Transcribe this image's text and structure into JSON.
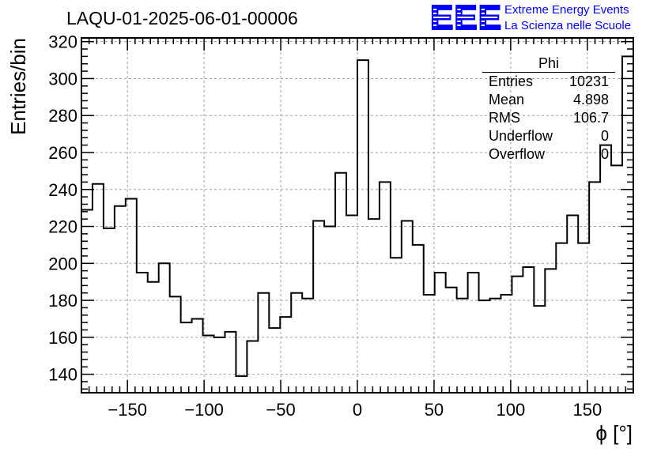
{
  "header": {
    "title": "LAQU-01-2025-06-01-00006",
    "logo_text": "EEE",
    "logo_line1": "Extreme Energy Events",
    "logo_line2": "La Scienza nelle Scuole"
  },
  "stats_box": {
    "title": "Phi",
    "rows": [
      {
        "key": "Entries",
        "value": "10231"
      },
      {
        "key": "Mean",
        "value": "4.898"
      },
      {
        "key": "RMS",
        "value": "106.7"
      },
      {
        "key": "Underflow",
        "value": "0"
      },
      {
        "key": "Overflow",
        "value": "0"
      }
    ]
  },
  "colors": {
    "logo_blue": "#0000ff",
    "line": "#000000",
    "grid": "#a0a0a0"
  },
  "chart_data": {
    "type": "histogram",
    "xlabel": "ϕ [°]",
    "ylabel": "Entries/bin",
    "xlim": [
      -180,
      180
    ],
    "ylim": [
      130,
      322
    ],
    "grid": true,
    "bin_width": 7.2,
    "bin_edges_start": -180,
    "x_ticks": [
      -150,
      -100,
      -50,
      0,
      50,
      100,
      150
    ],
    "x_tick_labels": [
      "−150",
      "−100",
      "−50",
      "0",
      "50",
      "100",
      "150"
    ],
    "y_ticks": [
      140,
      160,
      180,
      200,
      220,
      240,
      260,
      280,
      300,
      320
    ],
    "y_tick_labels": [
      "140",
      "160",
      "180",
      "200",
      "220",
      "240",
      "260",
      "280",
      "300",
      "320"
    ],
    "values": [
      229,
      243,
      219,
      231,
      235,
      195,
      190,
      200,
      182,
      168,
      170,
      161,
      160,
      163,
      139,
      158,
      184,
      165,
      171,
      184,
      181,
      223,
      220,
      249,
      226,
      310,
      224,
      244,
      203,
      223,
      210,
      183,
      195,
      187,
      181,
      195,
      180,
      181,
      183,
      193,
      198,
      177,
      197,
      211,
      226,
      211,
      244,
      264,
      253,
      312
    ]
  }
}
